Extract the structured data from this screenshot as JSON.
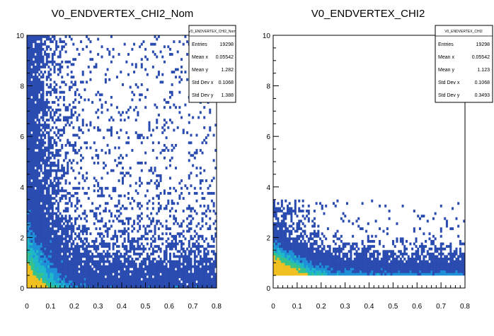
{
  "chart_data": [
    {
      "type": "heatmap",
      "title": "V0_ENDVERTEX_CHI2_Nom",
      "xlim": [
        0,
        0.8
      ],
      "ylim": [
        0,
        10
      ],
      "xticks": [
        "0",
        "0.1",
        "0.2",
        "0.3",
        "0.4",
        "0.5",
        "0.6",
        "0.7",
        "0.8"
      ],
      "yticks": [
        "0",
        "2",
        "4",
        "6",
        "8",
        "10"
      ],
      "stats_box": {
        "title": "V0_ENDVERTEX_CHI2_Nom",
        "rows": [
          {
            "label": "Entries",
            "value": "19298"
          },
          {
            "label": "Mean x",
            "value": "0.05542"
          },
          {
            "label": "Mean y",
            "value": "1.282"
          },
          {
            "label": "Std Dev x",
            "value": "0.1068"
          },
          {
            "label": "Std Dev y",
            "value": "1.388"
          }
        ]
      },
      "distribution": {
        "x_scale": 0.11,
        "y_core_min": 0,
        "y_core_max": 2.4,
        "y_tail_max": 10,
        "tail_fraction": 0.35
      }
    },
    {
      "type": "heatmap",
      "title": "V0_ENDVERTEX_CHI2",
      "xlim": [
        0,
        0.8
      ],
      "ylim": [
        0,
        10
      ],
      "xticks": [
        "0",
        "0.1",
        "0.2",
        "0.3",
        "0.4",
        "0.5",
        "0.6",
        "0.7",
        "0.8"
      ],
      "yticks": [
        "0",
        "2",
        "4",
        "6",
        "8",
        "10"
      ],
      "stats_box": {
        "title": "V0_ENDVERTEX_CHI2",
        "rows": [
          {
            "label": "Entries",
            "value": "19298"
          },
          {
            "label": "Mean x",
            "value": "0.05542"
          },
          {
            "label": "Mean y",
            "value": "1.123"
          },
          {
            "label": "Std Dev x",
            "value": "0.1068"
          },
          {
            "label": "Std Dev y",
            "value": "0.3493"
          }
        ]
      },
      "distribution": {
        "x_scale": 0.11,
        "y_core_min": 0.5,
        "y_core_max": 1.6,
        "y_tail_max": 3.5,
        "tail_fraction": 0.05
      }
    }
  ],
  "palette": {
    "low": "#2a4bb0",
    "mid": "#1e90d8",
    "mid2": "#1fb8c8",
    "high": "#36c28a",
    "peak": "#f0c020",
    "frame": "#000000",
    "background": "#ffffff"
  }
}
